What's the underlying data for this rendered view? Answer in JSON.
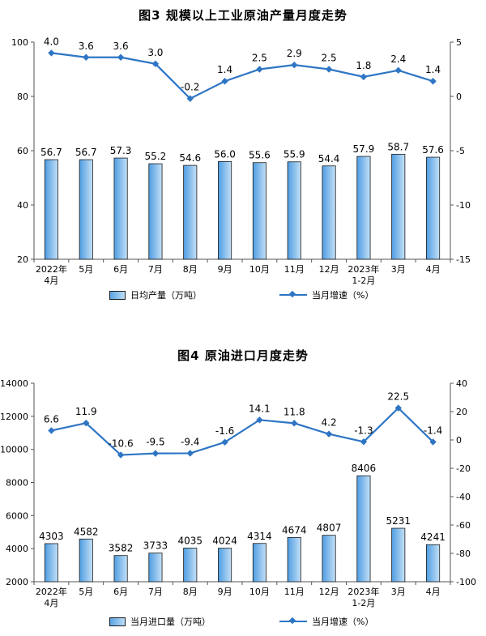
{
  "chart_data": [
    {
      "type": "bar",
      "title": "图3  规模以上工业原油产量月度走势",
      "categories": [
        "2022年\n4月",
        "5月",
        "6月",
        "7月",
        "8月",
        "9月",
        "10月",
        "11月",
        "12月",
        "2023年\n1-2月",
        "3月",
        "4月"
      ],
      "series": [
        {
          "name": "日均产量（万吨）",
          "kind": "bar",
          "axis": "left",
          "values": [
            56.7,
            56.7,
            57.3,
            55.2,
            54.6,
            56.0,
            55.6,
            55.9,
            54.4,
            57.9,
            58.7,
            57.6
          ]
        },
        {
          "name": "当月增速（%）",
          "kind": "line",
          "axis": "right",
          "values": [
            4.0,
            3.6,
            3.6,
            3.0,
            -0.2,
            1.4,
            2.5,
            2.9,
            2.5,
            1.8,
            2.4,
            1.4
          ]
        }
      ],
      "ylim_left": [
        20,
        100
      ],
      "yticks_left": [
        20,
        40,
        60,
        80,
        100
      ],
      "ylim_right": [
        -15,
        5
      ],
      "yticks_right": [
        -15,
        -10,
        -5,
        0,
        5
      ],
      "grid": false,
      "legend": "bottom"
    },
    {
      "type": "bar",
      "title": "图4  原油进口月度走势",
      "categories": [
        "2022年\n4月",
        "5月",
        "6月",
        "7月",
        "8月",
        "9月",
        "10月",
        "11月",
        "12月",
        "2023年\n1-2月",
        "3月",
        "4月"
      ],
      "series": [
        {
          "name": "当月进口量（万吨）",
          "kind": "bar",
          "axis": "left",
          "values": [
            4303,
            4582,
            3582,
            3733,
            4035,
            4024,
            4314,
            4674,
            4807,
            8406,
            5231,
            4241
          ]
        },
        {
          "name": "当月增速（%）",
          "kind": "line",
          "axis": "right",
          "values": [
            6.6,
            11.9,
            -10.6,
            -9.5,
            -9.4,
            -1.6,
            14.1,
            11.8,
            4.2,
            -1.3,
            22.5,
            -1.4
          ]
        }
      ],
      "ylim_left": [
        2000,
        14000
      ],
      "yticks_left": [
        2000,
        4000,
        6000,
        8000,
        10000,
        12000,
        14000
      ],
      "ylim_right": [
        -100,
        40
      ],
      "yticks_right": [
        -100,
        -80,
        -60,
        -40,
        -20,
        0,
        20,
        40
      ],
      "grid": false,
      "legend": "bottom"
    }
  ],
  "colors": {
    "bar_fill": "#9cc9ef",
    "bar_stroke": "#1a1a1a",
    "line": "#2e75c4"
  }
}
